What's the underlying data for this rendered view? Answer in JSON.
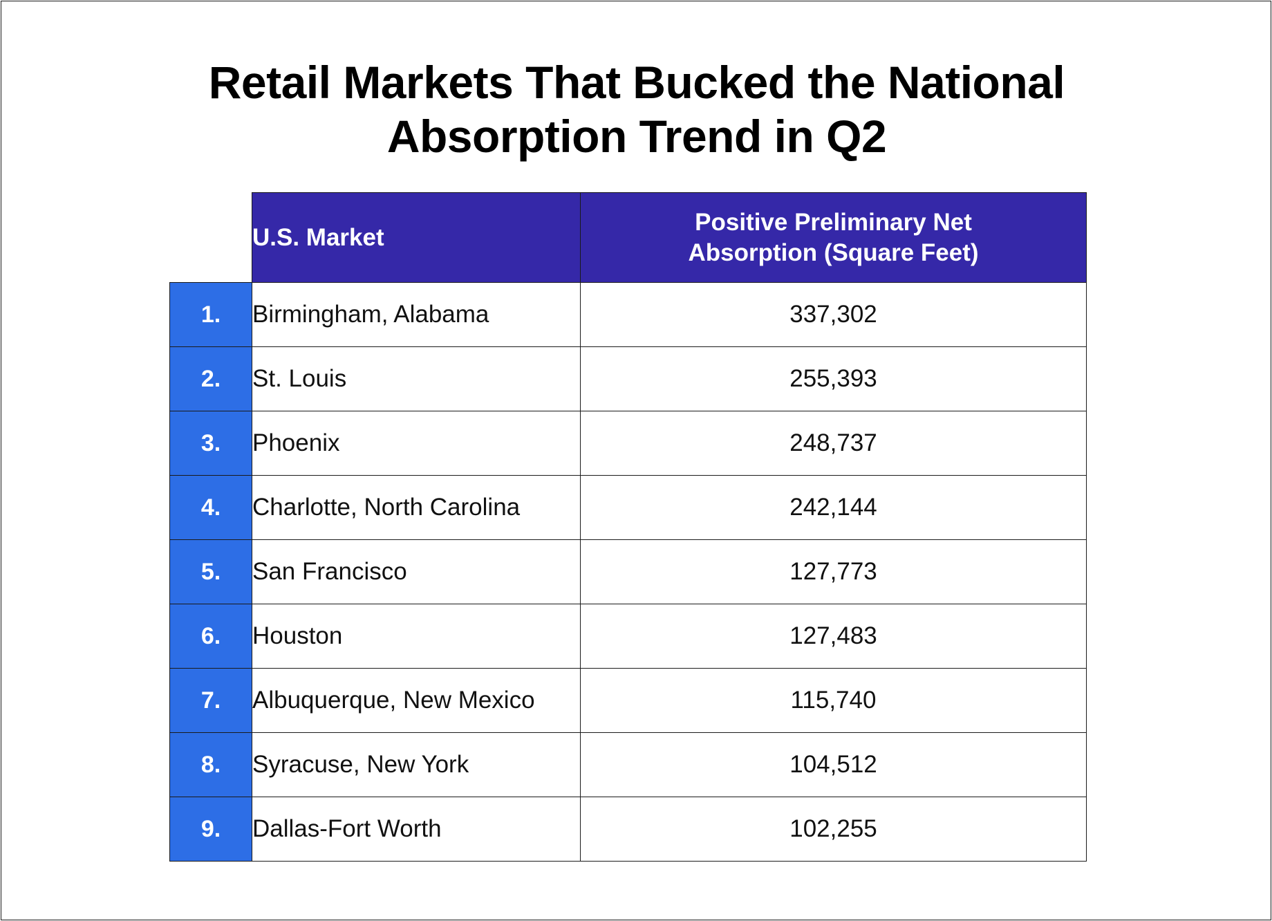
{
  "title": "Retail Markets That Bucked the National\nAbsorption Trend in Q2",
  "columns": {
    "market": "U.S. Market",
    "value": "Positive Preliminary Net\nAbsorption (Square Feet)"
  },
  "colors": {
    "header_bg": "#3528a8",
    "rank_bg": "#2d6ee6",
    "header_text": "#ffffff"
  },
  "chart_data": {
    "type": "table",
    "title": "Retail Markets That Bucked the National Absorption Trend in Q2",
    "columns": [
      "U.S. Market",
      "Positive Preliminary Net Absorption (Square Feet)"
    ],
    "rows": [
      {
        "rank": "1.",
        "market": "Birmingham, Alabama",
        "value": "337,302"
      },
      {
        "rank": "2.",
        "market": "St. Louis",
        "value": "255,393"
      },
      {
        "rank": "3.",
        "market": "Phoenix",
        "value": "248,737"
      },
      {
        "rank": "4.",
        "market": "Charlotte, North Carolina",
        "value": "242,144"
      },
      {
        "rank": "5.",
        "market": "San Francisco",
        "value": "127,773"
      },
      {
        "rank": "6.",
        "market": "Houston",
        "value": "127,483"
      },
      {
        "rank": "7.",
        "market": "Albuquerque, New Mexico",
        "value": "115,740"
      },
      {
        "rank": "8.",
        "market": "Syracuse, New York",
        "value": "104,512"
      },
      {
        "rank": "9.",
        "market": "Dallas-Fort Worth",
        "value": "102,255"
      }
    ]
  }
}
